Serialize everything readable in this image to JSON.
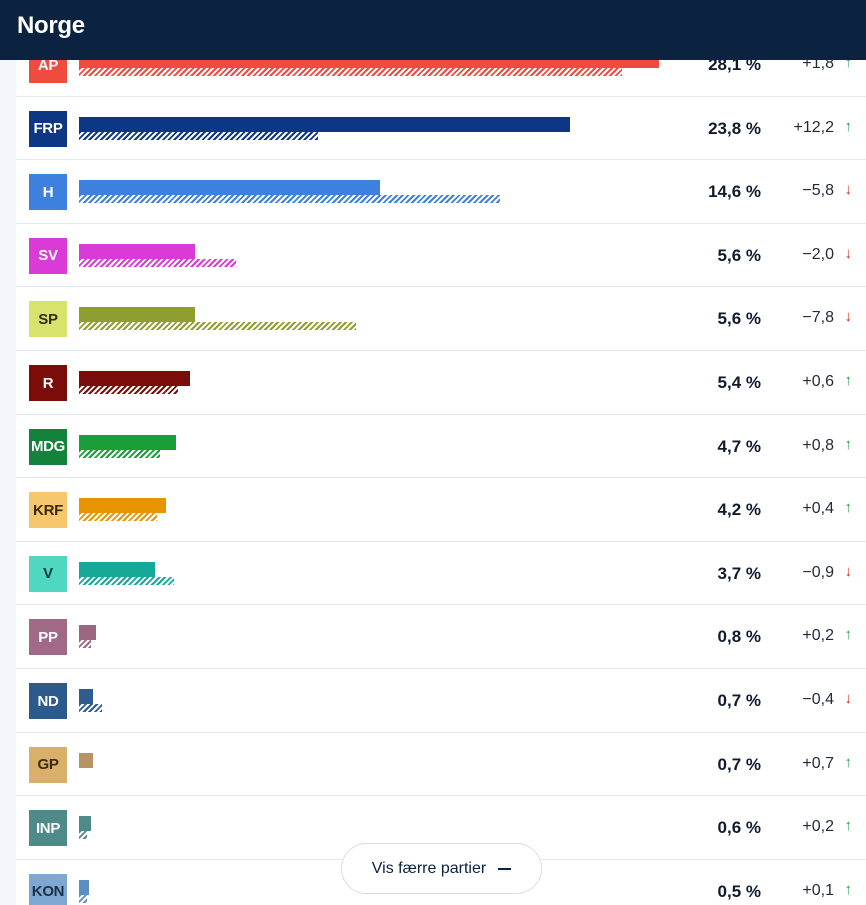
{
  "header": {
    "title": "Norge"
  },
  "scale_max_percent": 31,
  "parties": [
    {
      "code": "AP",
      "percent": "28,1 %",
      "change": "+1,8",
      "direction": "up",
      "now": 28.1,
      "prev": 26.3,
      "color": "#f04b3f",
      "badge_text": "#ffffff"
    },
    {
      "code": "FRP",
      "percent": "23,8 %",
      "change": "+12,2",
      "direction": "up",
      "now": 23.8,
      "prev": 11.6,
      "color": "#0d3684",
      "badge_text": "#ffffff"
    },
    {
      "code": "H",
      "percent": "14,6 %",
      "change": "−5,8",
      "direction": "down",
      "now": 14.6,
      "prev": 20.4,
      "color": "#3d80de",
      "badge_text": "#ffffff"
    },
    {
      "code": "SV",
      "percent": "5,6 %",
      "change": "−2,0",
      "direction": "down",
      "now": 5.6,
      "prev": 7.6,
      "color": "#da3ad6",
      "badge_text": "#ffffff"
    },
    {
      "code": "SP",
      "percent": "5,6 %",
      "change": "−7,8",
      "direction": "down",
      "now": 5.6,
      "prev": 13.4,
      "color": "#8f9e2f",
      "badge_color": "#d8e36e",
      "badge_text": "#2a2f10"
    },
    {
      "code": "R",
      "percent": "5,4 %",
      "change": "+0,6",
      "direction": "up",
      "now": 5.4,
      "prev": 4.8,
      "color": "#7a0c09",
      "badge_text": "#ffffff"
    },
    {
      "code": "MDG",
      "percent": "4,7 %",
      "change": "+0,8",
      "direction": "up",
      "now": 4.7,
      "prev": 3.9,
      "color": "#1a9e38",
      "badge_color": "#13823a",
      "badge_text": "#ffffff"
    },
    {
      "code": "KRF",
      "percent": "4,2 %",
      "change": "+0,4",
      "direction": "up",
      "now": 4.2,
      "prev": 3.8,
      "color": "#e69500",
      "badge_color": "#f6c76c",
      "badge_text": "#3b2a05"
    },
    {
      "code": "V",
      "percent": "3,7 %",
      "change": "−0,9",
      "direction": "down",
      "now": 3.7,
      "prev": 4.6,
      "color": "#16a898",
      "badge_color": "#4fd7c2",
      "badge_text": "#0c3a33"
    },
    {
      "code": "PP",
      "percent": "0,8 %",
      "change": "+0,2",
      "direction": "up",
      "now": 0.8,
      "prev": 0.6,
      "color": "#9c6783",
      "badge_color": "#a06a87",
      "badge_text": "#ffffff"
    },
    {
      "code": "ND",
      "percent": "0,7 %",
      "change": "−0,4",
      "direction": "down",
      "now": 0.7,
      "prev": 1.1,
      "color": "#2f5c8e",
      "badge_color": "#2d5a8c",
      "badge_text": "#ffffff"
    },
    {
      "code": "GP",
      "percent": "0,7 %",
      "change": "+0,7",
      "direction": "up",
      "now": 0.7,
      "prev": 0,
      "color": "#b89463",
      "badge_color": "#d9b06a",
      "badge_text": "#3a2a10"
    },
    {
      "code": "INP",
      "percent": "0,6 %",
      "change": "+0,2",
      "direction": "up",
      "now": 0.6,
      "prev": 0.4,
      "color": "#4f8a8b",
      "badge_color": "#4e8a8a",
      "badge_text": "#ffffff"
    },
    {
      "code": "KON",
      "percent": "0,5 %",
      "change": "+0,1",
      "direction": "up",
      "now": 0.5,
      "prev": 0.4,
      "color": "#5b8fc4",
      "badge_color": "#7ea7d2",
      "badge_text": "#1b2f47"
    }
  ],
  "toggle": {
    "label": "Vis færre partier",
    "icon": "minus-icon"
  }
}
